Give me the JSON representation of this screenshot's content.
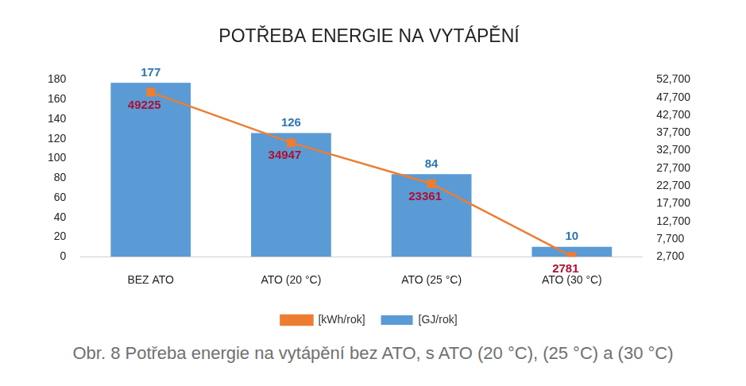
{
  "chart_data": {
    "type": "bar",
    "title": "POTŘEBA ENERGIE NA VYTÁPĚNÍ",
    "caption": "Obr. 8 Potřeba energie na vytápění bez ATO, s ATO (20 °C), (25 °C) a (30 °C)",
    "categories": [
      "BEZ ATO",
      "ATO (20 °C)",
      "ATO (25 °C)",
      "ATO (30 °C)"
    ],
    "series": [
      {
        "name": "[GJ/rok]",
        "type": "bar",
        "color": "#5b9bd5",
        "values": [
          177,
          126,
          84,
          10
        ]
      },
      {
        "name": "[kWh/rok]",
        "type": "line",
        "color": "#ed7d31",
        "marker": "square",
        "axis": "y2",
        "values": [
          49225,
          34947,
          23361,
          2781
        ]
      }
    ],
    "ylim": [
      0,
      180
    ],
    "yticks": [
      0,
      20,
      40,
      60,
      80,
      100,
      120,
      140,
      160,
      180
    ],
    "y2lim": [
      2700,
      52700
    ],
    "y2ticks": [
      2700,
      7700,
      12700,
      17700,
      22700,
      27700,
      32700,
      37700,
      42700,
      47700,
      52700
    ],
    "grid": false,
    "legend": "bottom",
    "data_labels": true
  }
}
